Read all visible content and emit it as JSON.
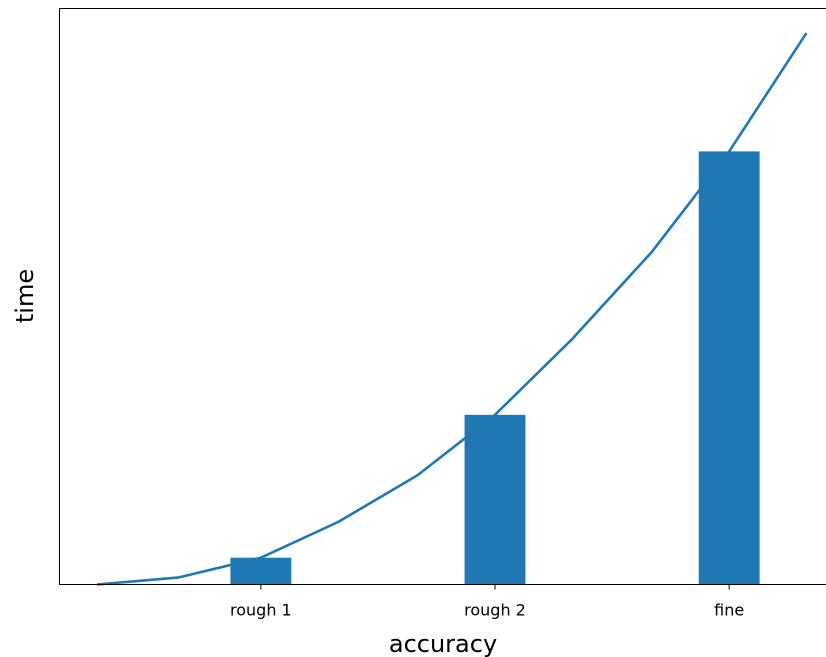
{
  "chart_data": {
    "type": "bar",
    "categories": [
      "rough 1",
      "rough 2",
      "fine"
    ],
    "values": [
      0.06,
      0.38,
      0.97
    ],
    "xlabel": "accuracy",
    "ylabel": "time",
    "ylim": [
      0,
      1.29
    ],
    "grid": false,
    "bar_color": "#1f77b4",
    "line_color": "#1f77b4",
    "line": {
      "x": [
        -0.7,
        -0.35,
        0.0,
        0.33,
        0.67,
        1.0,
        1.33,
        1.67,
        2.0,
        2.33
      ],
      "y": [
        0.0,
        0.016,
        0.06,
        0.14,
        0.245,
        0.38,
        0.55,
        0.745,
        0.97,
        1.235
      ]
    },
    "y_ticks_shown": false
  }
}
